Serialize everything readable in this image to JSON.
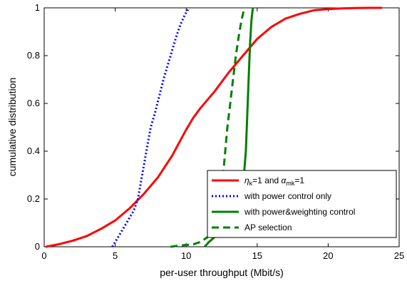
{
  "chart_data": {
    "type": "line",
    "xlabel": "per-user throughput (Mbit/s)",
    "ylabel": "cumulative distribution",
    "xlim": [
      0,
      25
    ],
    "ylim": [
      0,
      1
    ],
    "x_ticks": [
      "0",
      "5",
      "10",
      "15",
      "20",
      "25"
    ],
    "y_ticks": [
      "0",
      "0.2",
      "0.4",
      "0.6",
      "0.8",
      "1"
    ],
    "grid": false,
    "legend_position": "bottom-right",
    "series": [
      {
        "name": "ηk=1 and αmk=1",
        "legend": {
          "prefix": "η",
          "sub1": "k",
          "mid": "=1 and ",
          "greek2": "α",
          "sub2": "mk",
          "suffix": "=1"
        },
        "color": "#ff0000",
        "style": "solid",
        "x": [
          0.1,
          1,
          2,
          3,
          4,
          5,
          6,
          7,
          8,
          9,
          10,
          10.5,
          11,
          12,
          13,
          14,
          15,
          16,
          17,
          18,
          19,
          20,
          21,
          22,
          23,
          23.8
        ],
        "y": [
          0.0,
          0.01,
          0.025,
          0.045,
          0.075,
          0.11,
          0.16,
          0.22,
          0.29,
          0.38,
          0.49,
          0.54,
          0.58,
          0.65,
          0.73,
          0.8,
          0.87,
          0.92,
          0.955,
          0.975,
          0.99,
          0.995,
          0.998,
          0.999,
          1.0,
          1.0
        ]
      },
      {
        "name": "with power control only",
        "color": "#0000ff",
        "style": "dotted",
        "x": [
          4.8,
          5.0,
          5.3,
          5.6,
          6.0,
          6.3,
          6.6,
          6.9,
          7.2,
          7.5,
          7.8,
          8.1,
          8.4,
          8.7,
          9.0,
          9.3,
          9.6,
          9.9,
          10.2
        ],
        "y": [
          0.0,
          0.02,
          0.05,
          0.08,
          0.12,
          0.15,
          0.2,
          0.3,
          0.4,
          0.5,
          0.56,
          0.63,
          0.7,
          0.76,
          0.82,
          0.88,
          0.93,
          0.97,
          1.0
        ]
      },
      {
        "name": "with power&weighting control",
        "color": "#007f00",
        "style": "solid",
        "x": [
          11.3,
          11.6,
          12.0,
          12.5,
          13.0,
          13.5,
          14.0,
          14.2,
          14.3,
          14.4,
          14.5,
          14.6,
          14.7
        ],
        "y": [
          0.0,
          0.02,
          0.04,
          0.06,
          0.08,
          0.12,
          0.25,
          0.4,
          0.55,
          0.7,
          0.85,
          0.95,
          1.0
        ]
      },
      {
        "name": "AP selection",
        "color": "#007f00",
        "style": "dashed",
        "x": [
          8.9,
          9.5,
          10.5,
          11.0,
          11.5,
          12.0,
          12.3,
          12.6,
          12.9,
          13.1,
          13.3,
          13.5,
          13.7,
          13.9,
          14.1
        ],
        "y": [
          0.0,
          0.005,
          0.01,
          0.02,
          0.04,
          0.07,
          0.15,
          0.3,
          0.5,
          0.6,
          0.7,
          0.8,
          0.88,
          0.95,
          1.0
        ]
      }
    ]
  }
}
